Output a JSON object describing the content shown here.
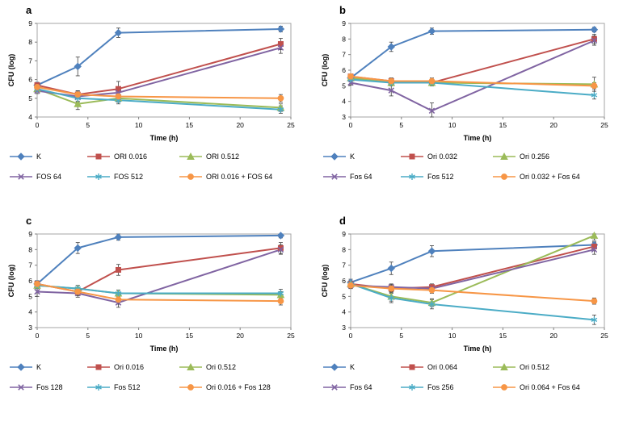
{
  "figure": {
    "panel_labels": [
      "a",
      "b",
      "c",
      "d"
    ]
  },
  "chart_data": [
    {
      "type": "line",
      "panel_label": "a",
      "xlabel": "Time (h)",
      "ylabel": "CFU (log)",
      "x": [
        0,
        4,
        8,
        24
      ],
      "xticks": [
        0,
        5,
        10,
        15,
        20,
        25
      ],
      "xlim": [
        0,
        25
      ],
      "ylim": [
        4,
        9
      ],
      "yticks": [
        4,
        5,
        6,
        7,
        8,
        9
      ],
      "grid": false,
      "legend_position": "bottom",
      "series": [
        {
          "name": "K",
          "color": "#4F81BD",
          "marker": "diamond",
          "values": [
            5.7,
            6.7,
            8.5,
            8.7
          ],
          "errors": [
            0.15,
            0.5,
            0.25,
            0.15
          ]
        },
        {
          "name": "ORI 0.016",
          "color": "#C0504D",
          "marker": "square",
          "values": [
            5.7,
            5.2,
            5.5,
            7.9
          ],
          "errors": [
            0.15,
            0.2,
            0.4,
            0.3
          ]
        },
        {
          "name": "ORI 0.512",
          "color": "#9BBB59",
          "marker": "triangle",
          "values": [
            5.5,
            4.7,
            5.0,
            4.5
          ],
          "errors": [
            0.15,
            0.3,
            0.2,
            0.2
          ]
        },
        {
          "name": "FOS 64",
          "color": "#8064A2",
          "marker": "x",
          "values": [
            5.4,
            5.1,
            5.3,
            7.7
          ],
          "errors": [
            0.15,
            0.25,
            0.2,
            0.3
          ]
        },
        {
          "name": "FOS 512",
          "color": "#4BACC6",
          "marker": "star",
          "values": [
            5.5,
            5.0,
            4.9,
            4.4
          ],
          "errors": [
            0.15,
            0.2,
            0.2,
            0.2
          ]
        },
        {
          "name": "ORI 0.016 + FOS 64",
          "color": "#F79646",
          "marker": "circle",
          "values": [
            5.6,
            5.2,
            5.1,
            5.0
          ],
          "errors": [
            0.15,
            0.2,
            0.2,
            0.2
          ]
        }
      ]
    },
    {
      "type": "line",
      "panel_label": "b",
      "xlabel": "Time (h)",
      "ylabel": "CFU (log)",
      "x": [
        0,
        4,
        8,
        24
      ],
      "xticks": [
        0,
        5,
        10,
        15,
        20,
        25
      ],
      "xlim": [
        0,
        25
      ],
      "ylim": [
        3,
        9
      ],
      "yticks": [
        3,
        4,
        5,
        6,
        7,
        8,
        9
      ],
      "grid": false,
      "legend_position": "bottom",
      "series": [
        {
          "name": "K",
          "color": "#4F81BD",
          "marker": "diamond",
          "values": [
            5.5,
            7.5,
            8.5,
            8.6
          ],
          "errors": [
            0.15,
            0.3,
            0.2,
            0.15
          ]
        },
        {
          "name": "Ori 0.032",
          "color": "#C0504D",
          "marker": "square",
          "values": [
            5.6,
            5.3,
            5.2,
            8.0
          ],
          "errors": [
            0.15,
            0.2,
            0.2,
            0.3
          ]
        },
        {
          "name": "Ori 0.256",
          "color": "#9BBB59",
          "marker": "triangle",
          "values": [
            5.5,
            5.2,
            5.2,
            5.1
          ],
          "errors": [
            0.15,
            0.2,
            0.2,
            0.45
          ]
        },
        {
          "name": "Fos 64",
          "color": "#8064A2",
          "marker": "x",
          "values": [
            5.2,
            4.7,
            3.4,
            7.9
          ],
          "errors": [
            0.15,
            0.35,
            0.5,
            0.3
          ]
        },
        {
          "name": "Fos 512",
          "color": "#4BACC6",
          "marker": "star",
          "values": [
            5.4,
            5.2,
            5.2,
            4.4
          ],
          "errors": [
            0.15,
            0.2,
            0.2,
            0.25
          ]
        },
        {
          "name": "Ori 0.032 + Fos 64",
          "color": "#F79646",
          "marker": "circle",
          "values": [
            5.6,
            5.3,
            5.3,
            5.0
          ],
          "errors": [
            0.15,
            0.2,
            0.2,
            0.2
          ]
        }
      ]
    },
    {
      "type": "line",
      "panel_label": "c",
      "xlabel": "Time (h)",
      "ylabel": "CFU (log)",
      "x": [
        0,
        4,
        8,
        24
      ],
      "xticks": [
        0,
        5,
        10,
        15,
        20,
        25
      ],
      "xlim": [
        0,
        25
      ],
      "ylim": [
        3,
        9
      ],
      "yticks": [
        3,
        4,
        5,
        6,
        7,
        8,
        9
      ],
      "grid": false,
      "legend_position": "bottom",
      "series": [
        {
          "name": "K",
          "color": "#4F81BD",
          "marker": "diamond",
          "values": [
            5.8,
            8.1,
            8.8,
            8.9
          ],
          "errors": [
            0.2,
            0.35,
            0.2,
            0.15
          ]
        },
        {
          "name": "Ori 0.016",
          "color": "#C0504D",
          "marker": "square",
          "values": [
            5.8,
            5.3,
            6.7,
            8.1
          ],
          "errors": [
            0.2,
            0.25,
            0.35,
            0.35
          ]
        },
        {
          "name": "Ori 0.512",
          "color": "#9BBB59",
          "marker": "triangle",
          "values": [
            5.7,
            5.5,
            5.2,
            5.1
          ],
          "errors": [
            0.2,
            0.2,
            0.2,
            0.2
          ]
        },
        {
          "name": "Fos 128",
          "color": "#8064A2",
          "marker": "x",
          "values": [
            5.3,
            5.2,
            4.6,
            8.0
          ],
          "errors": [
            0.3,
            0.25,
            0.3,
            0.3
          ]
        },
        {
          "name": "Fos 512",
          "color": "#4BACC6",
          "marker": "star",
          "values": [
            5.7,
            5.5,
            5.2,
            5.2
          ],
          "errors": [
            0.2,
            0.2,
            0.2,
            0.25
          ]
        },
        {
          "name": "Ori 0.016 + Fos 128",
          "color": "#F79646",
          "marker": "circle",
          "values": [
            5.8,
            5.3,
            4.8,
            4.7
          ],
          "errors": [
            0.2,
            0.2,
            0.3,
            0.25
          ]
        }
      ]
    },
    {
      "type": "line",
      "panel_label": "d",
      "xlabel": "Time (h)",
      "ylabel": "CFU (log)",
      "x": [
        0,
        4,
        8,
        24
      ],
      "xticks": [
        0,
        5,
        10,
        15,
        20,
        25
      ],
      "xlim": [
        0,
        25
      ],
      "ylim": [
        3,
        9
      ],
      "yticks": [
        3,
        4,
        5,
        6,
        7,
        8,
        9
      ],
      "grid": false,
      "legend_position": "bottom",
      "series": [
        {
          "name": "K",
          "color": "#4F81BD",
          "marker": "diamond",
          "values": [
            5.9,
            6.8,
            7.9,
            8.3
          ],
          "errors": [
            0.2,
            0.4,
            0.35,
            0.2
          ]
        },
        {
          "name": "Ori 0.064",
          "color": "#C0504D",
          "marker": "square",
          "values": [
            5.8,
            5.5,
            5.6,
            8.2
          ],
          "errors": [
            0.2,
            0.25,
            0.2,
            0.25
          ]
        },
        {
          "name": "Ori 0.512",
          "color": "#9BBB59",
          "marker": "triangle",
          "values": [
            5.8,
            5.0,
            4.6,
            8.9
          ],
          "errors": [
            0.2,
            0.3,
            0.25,
            0.3
          ]
        },
        {
          "name": "Fos 64",
          "color": "#8064A2",
          "marker": "x",
          "values": [
            5.7,
            5.6,
            5.5,
            8.0
          ],
          "errors": [
            0.2,
            0.2,
            0.2,
            0.3
          ]
        },
        {
          "name": "Fos 256",
          "color": "#4BACC6",
          "marker": "star",
          "values": [
            5.8,
            4.9,
            4.5,
            3.5
          ],
          "errors": [
            0.2,
            0.3,
            0.3,
            0.3
          ]
        },
        {
          "name": "Ori 0.064 + Fos 64",
          "color": "#F79646",
          "marker": "circle",
          "values": [
            5.7,
            5.5,
            5.4,
            4.7
          ],
          "errors": [
            0.2,
            0.2,
            0.2,
            0.2
          ]
        }
      ]
    }
  ]
}
